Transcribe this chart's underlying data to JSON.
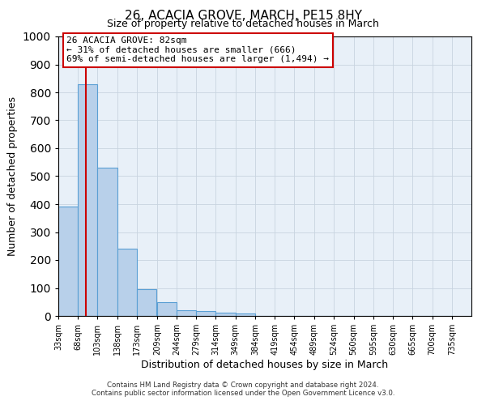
{
  "title": "26, ACACIA GROVE, MARCH, PE15 8HY",
  "subtitle": "Size of property relative to detached houses in March",
  "xlabel": "Distribution of detached houses by size in March",
  "ylabel": "Number of detached properties",
  "bar_values": [
    390,
    830,
    530,
    240,
    95,
    50,
    20,
    18,
    12,
    8,
    0,
    0,
    0,
    0,
    0,
    0,
    0,
    0,
    0,
    0
  ],
  "bin_labels": [
    "33sqm",
    "68sqm",
    "103sqm",
    "138sqm",
    "173sqm",
    "209sqm",
    "244sqm",
    "279sqm",
    "314sqm",
    "349sqm",
    "384sqm",
    "419sqm",
    "454sqm",
    "489sqm",
    "524sqm",
    "560sqm",
    "595sqm",
    "630sqm",
    "665sqm",
    "700sqm",
    "735sqm"
  ],
  "bar_color": "#b8d0ea",
  "bar_edge_color": "#5a9fd4",
  "vline_x": 82,
  "vline_color": "#cc0000",
  "ylim": [
    0,
    1000
  ],
  "yticks": [
    0,
    100,
    200,
    300,
    400,
    500,
    600,
    700,
    800,
    900,
    1000
  ],
  "bin_edges": [
    33,
    68,
    103,
    138,
    173,
    209,
    244,
    279,
    314,
    349,
    384,
    419,
    454,
    489,
    524,
    560,
    595,
    630,
    665,
    700,
    735
  ],
  "bin_width": 35,
  "annotation_title": "26 ACACIA GROVE: 82sqm",
  "annotation_line1": "← 31% of detached houses are smaller (666)",
  "annotation_line2": "69% of semi-detached houses are larger (1,494) →",
  "annotation_box_color": "#ffffff",
  "annotation_box_edge": "#cc0000",
  "footer1": "Contains HM Land Registry data © Crown copyright and database right 2024.",
  "footer2": "Contains public sector information licensed under the Open Government Licence v3.0.",
  "background_color": "#ffffff",
  "axes_bg_color": "#e8f0f8",
  "grid_color": "#c8d4e0"
}
